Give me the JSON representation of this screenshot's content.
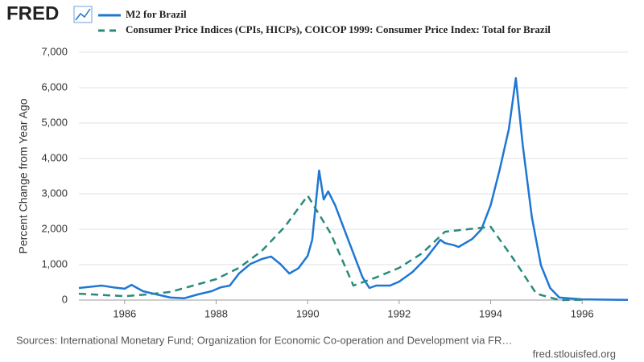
{
  "chart_data": {
    "type": "line",
    "logo": "FRED",
    "y_label": "Percent Change from Year Ago",
    "source": "Sources: International Monetary Fund; Organization for Economic Co-operation and Development via FR…",
    "credit": "fred.stlouisfed.org",
    "xlim": [
      1985,
      1997
    ],
    "xticks": [
      1986,
      1988,
      1990,
      1992,
      1994,
      1996
    ],
    "ylim": [
      0,
      7000
    ],
    "yticks": [
      0,
      {
        "value": 1000,
        "label": "1,000"
      },
      {
        "value": 2000,
        "label": "2,000"
      },
      {
        "value": 3000,
        "label": "3,000"
      },
      {
        "value": 4000,
        "label": "4,000"
      },
      {
        "value": 5000,
        "label": "5,000"
      },
      {
        "value": 6000,
        "label": "6,000"
      },
      {
        "value": 7000,
        "label": "7,000"
      }
    ],
    "grid": true,
    "series": [
      {
        "name": "M2 for Brazil",
        "color": "#1f77d4",
        "dash": false,
        "x": [
          1985.0,
          1985.5,
          1985.75,
          1986.0,
          1986.15,
          1986.4,
          1986.7,
          1987.0,
          1987.3,
          1987.6,
          1987.9,
          1988.1,
          1988.3,
          1988.5,
          1988.75,
          1989.0,
          1989.2,
          1989.4,
          1989.6,
          1989.8,
          1990.0,
          1990.1,
          1990.25,
          1990.35,
          1990.45,
          1990.6,
          1990.8,
          1991.0,
          1991.2,
          1991.35,
          1991.5,
          1991.8,
          1992.0,
          1992.3,
          1992.6,
          1992.9,
          1993.0,
          1993.2,
          1993.3,
          1993.6,
          1993.8,
          1994.0,
          1994.2,
          1994.4,
          1994.55,
          1994.7,
          1994.9,
          1995.1,
          1995.3,
          1995.5,
          1996.0,
          1997.0
        ],
        "values": [
          340,
          410,
          360,
          320,
          430,
          250,
          160,
          70,
          50,
          160,
          250,
          360,
          410,
          750,
          1020,
          1160,
          1230,
          1020,
          750,
          900,
          1250,
          1700,
          3660,
          2840,
          3070,
          2680,
          2000,
          1320,
          640,
          340,
          410,
          410,
          520,
          800,
          1200,
          1700,
          1610,
          1550,
          1500,
          1730,
          2000,
          2680,
          3700,
          4840,
          6270,
          4390,
          2340,
          980,
          340,
          70,
          20,
          5
        ]
      },
      {
        "name": "Consumer Price Indices (CPIs, HICPs), COICOP 1999: Consumer Price Index: Total for Brazil",
        "color": "#2a8a7a",
        "dash": true,
        "x": [
          1985.0,
          1986.0,
          1986.5,
          1987.0,
          1987.5,
          1988.0,
          1988.5,
          1989.0,
          1989.5,
          1990.0,
          1990.5,
          1991.0,
          1991.5,
          1992.0,
          1992.5,
          1993.0,
          1993.5,
          1994.0,
          1994.5,
          1995.0,
          1995.5,
          1996.0
        ],
        "values": [
          180,
          110,
          160,
          230,
          410,
          590,
          910,
          1390,
          2070,
          2950,
          1890,
          410,
          640,
          910,
          1320,
          1930,
          2000,
          2070,
          1160,
          180,
          0,
          10
        ]
      }
    ]
  }
}
